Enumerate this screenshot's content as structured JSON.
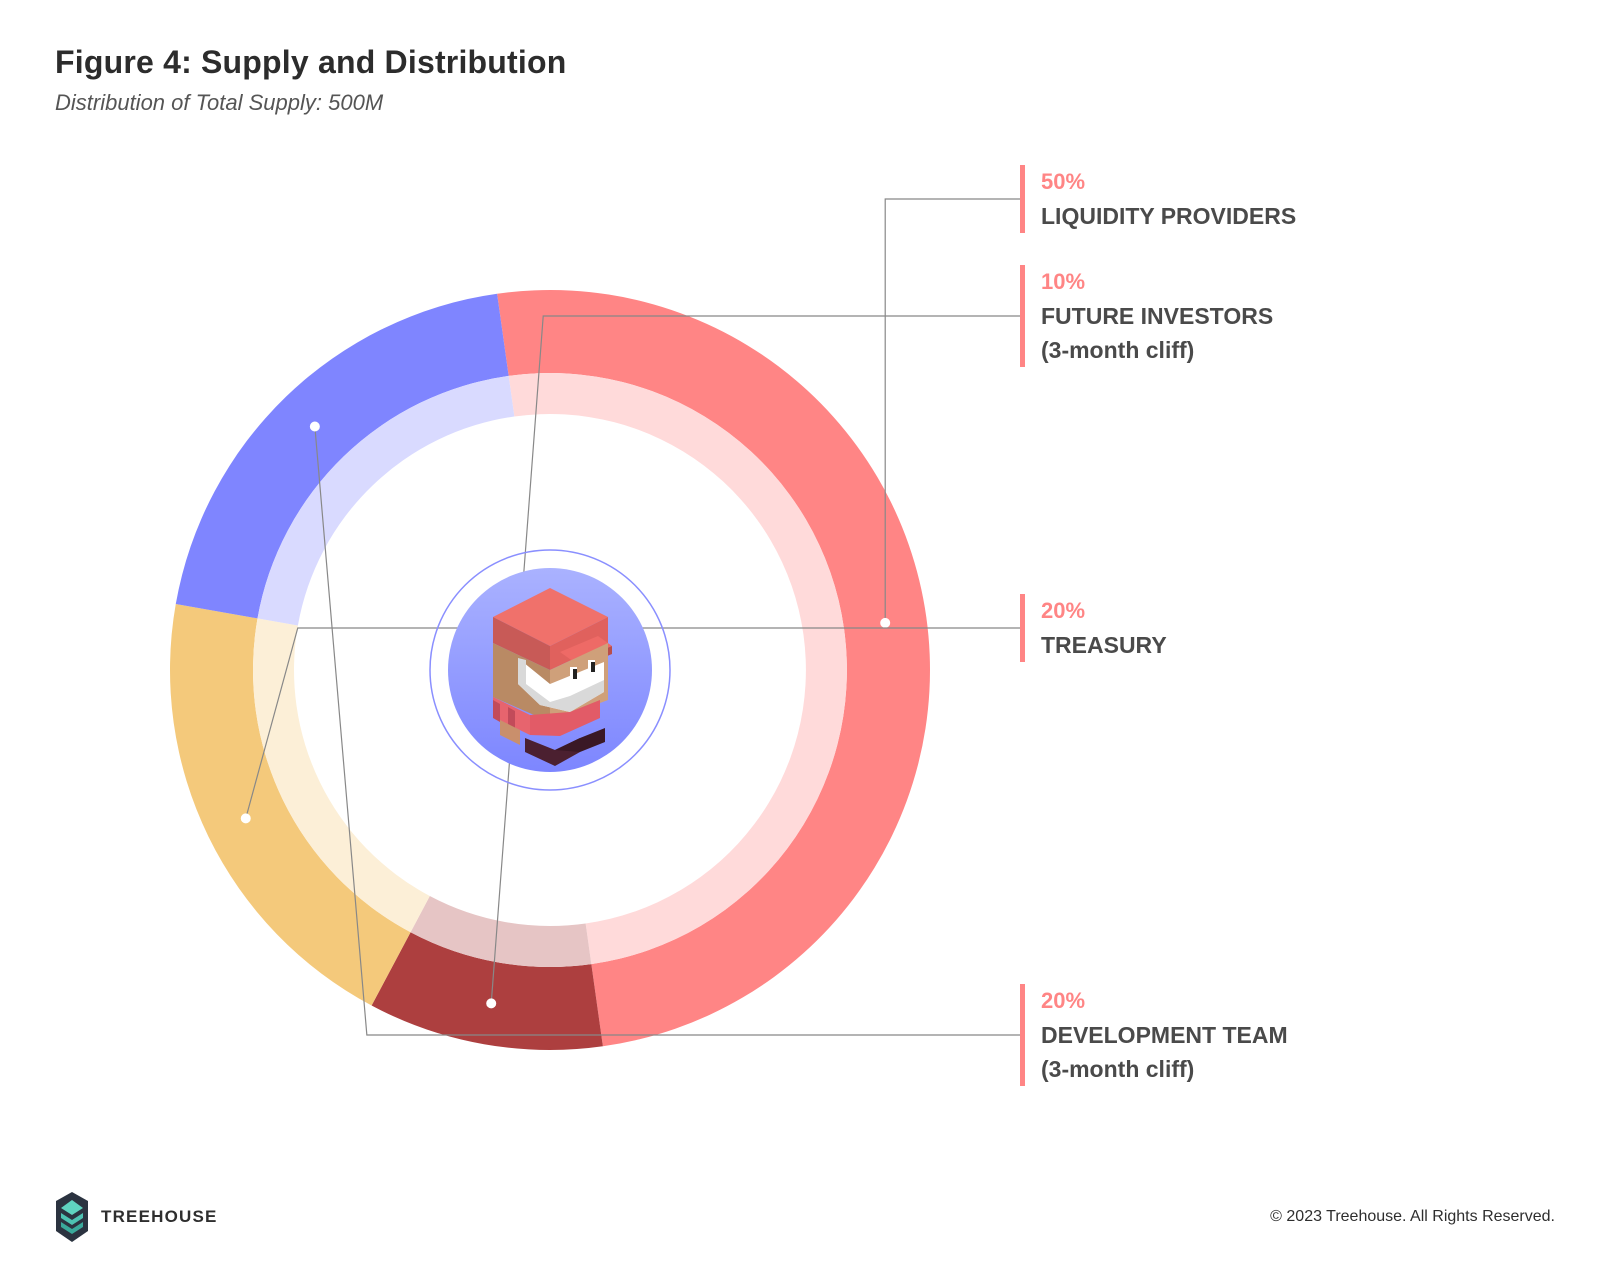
{
  "header": {
    "title": "Figure 4: Supply and Distribution",
    "subtitle": "Distribution of Total Supply: 500M"
  },
  "chart_data": {
    "type": "pie",
    "style": "donut",
    "title": "Figure 4: Supply and Distribution",
    "subtitle": "Distribution of Total Supply: 500M",
    "total": "500M",
    "unit": "%",
    "slices": [
      {
        "label": "LIQUIDITY PROVIDERS",
        "note": "",
        "value": 50,
        "pct_label": "50%",
        "color": "#ff8585"
      },
      {
        "label": "FUTURE INVESTORS",
        "note": "(3-month cliff)",
        "value": 10,
        "pct_label": "10%",
        "color": "#ad3f3f"
      },
      {
        "label": "TREASURY",
        "note": "",
        "value": 20,
        "pct_label": "20%",
        "color": "#f4c97b"
      },
      {
        "label": "DEVELOPMENT TEAM",
        "note": "(3-month cliff)",
        "value": 20,
        "pct_label": "20%",
        "color": "#7f85ff"
      }
    ],
    "legend_placement": "right"
  },
  "footer": {
    "brand": "TREEHOUSE",
    "copyright": "© 2023 Treehouse. All Rights Reserved."
  },
  "colors": {
    "accent": "#ff8585",
    "leader_line": "#888888",
    "center_outer": "#aab2ff",
    "center_inner": "#8088ff"
  },
  "icons": {
    "logo": "treehouse-logo-icon",
    "center": "gnome-mascot-icon"
  }
}
